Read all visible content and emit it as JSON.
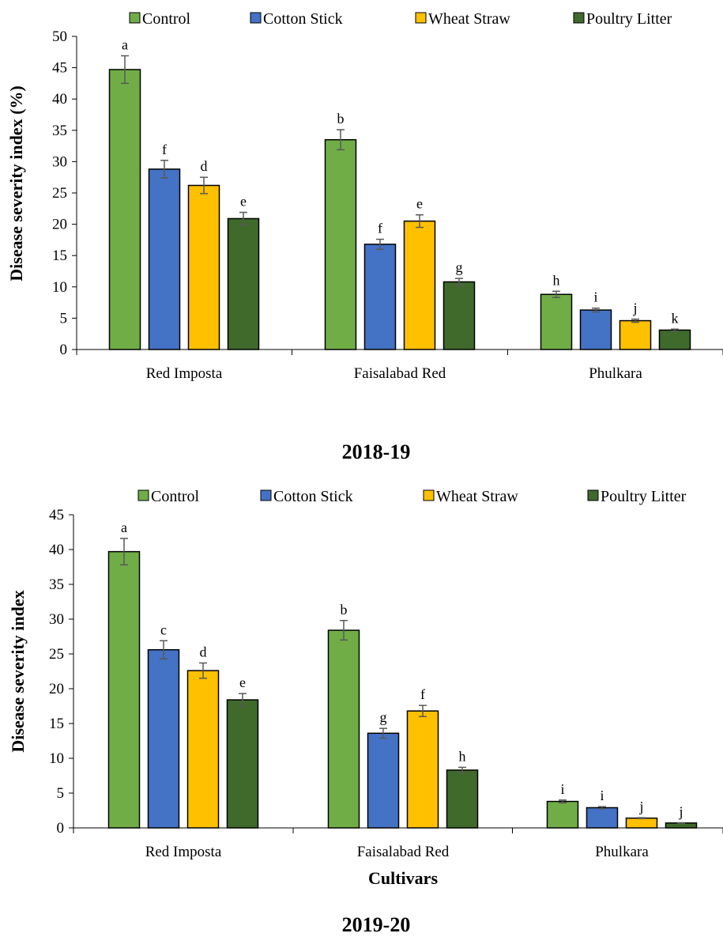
{
  "colors": {
    "Control": "#70ad47",
    "Cotton Stick": "#4472c4",
    "Wheat Straw": "#ffc000",
    "Poultry Litter": "#40692c",
    "bar_outline": "#000000",
    "error_bar": "#595959"
  },
  "chart_data": [
    {
      "type": "bar",
      "caption": "2018-19",
      "ylabel": "Disease severity index (%)",
      "xlabel": "",
      "ylim": [
        0,
        50
      ],
      "yticks": [
        0,
        5,
        10,
        15,
        20,
        25,
        30,
        35,
        40,
        45,
        50
      ],
      "legend": "top",
      "categories": [
        "Red Imposta",
        "Faisalabad Red",
        "Phulkara"
      ],
      "series": [
        {
          "name": "Control",
          "values": [
            44.7,
            33.5,
            8.8
          ],
          "errors": [
            2.2,
            1.6,
            0.5
          ],
          "letters": [
            "a",
            "b",
            "h"
          ]
        },
        {
          "name": "Cotton Stick",
          "values": [
            28.8,
            16.8,
            6.3
          ],
          "errors": [
            1.4,
            0.8,
            0.3
          ],
          "letters": [
            "f",
            "f",
            "i"
          ]
        },
        {
          "name": "Wheat Straw",
          "values": [
            26.2,
            20.5,
            4.6
          ],
          "errors": [
            1.3,
            1.0,
            0.25
          ],
          "letters": [
            "d",
            "e",
            "j"
          ]
        },
        {
          "name": "Poultry Litter",
          "values": [
            20.9,
            10.8,
            3.1
          ],
          "errors": [
            1.0,
            0.55,
            0.15
          ],
          "letters": [
            "e",
            "g",
            "k"
          ]
        }
      ]
    },
    {
      "type": "bar",
      "caption": "2019-20",
      "ylabel": "Disease severity index",
      "xlabel": "Cultivars",
      "ylim": [
        0,
        45
      ],
      "yticks": [
        0,
        5,
        10,
        15,
        20,
        25,
        30,
        35,
        40,
        45
      ],
      "legend": "top",
      "categories": [
        "Red Imposta",
        "Faisalabad Red",
        "Phulkara"
      ],
      "series": [
        {
          "name": "Control",
          "values": [
            39.7,
            28.4,
            3.8
          ],
          "errors": [
            1.9,
            1.4,
            0.2
          ],
          "letters": [
            "a",
            "b",
            "i"
          ]
        },
        {
          "name": "Cotton Stick",
          "values": [
            25.6,
            13.6,
            2.9
          ],
          "errors": [
            1.3,
            0.7,
            0.15
          ],
          "letters": [
            "c",
            "g",
            "i"
          ]
        },
        {
          "name": "Wheat Straw",
          "values": [
            22.6,
            16.8,
            1.4
          ],
          "errors": [
            1.1,
            0.8,
            0.07
          ],
          "letters": [
            "d",
            "f",
            "j"
          ]
        },
        {
          "name": "Poultry Litter",
          "values": [
            18.4,
            8.3,
            0.7
          ],
          "errors": [
            0.9,
            0.4,
            0.04
          ],
          "letters": [
            "e",
            "h",
            "j"
          ]
        }
      ]
    }
  ]
}
